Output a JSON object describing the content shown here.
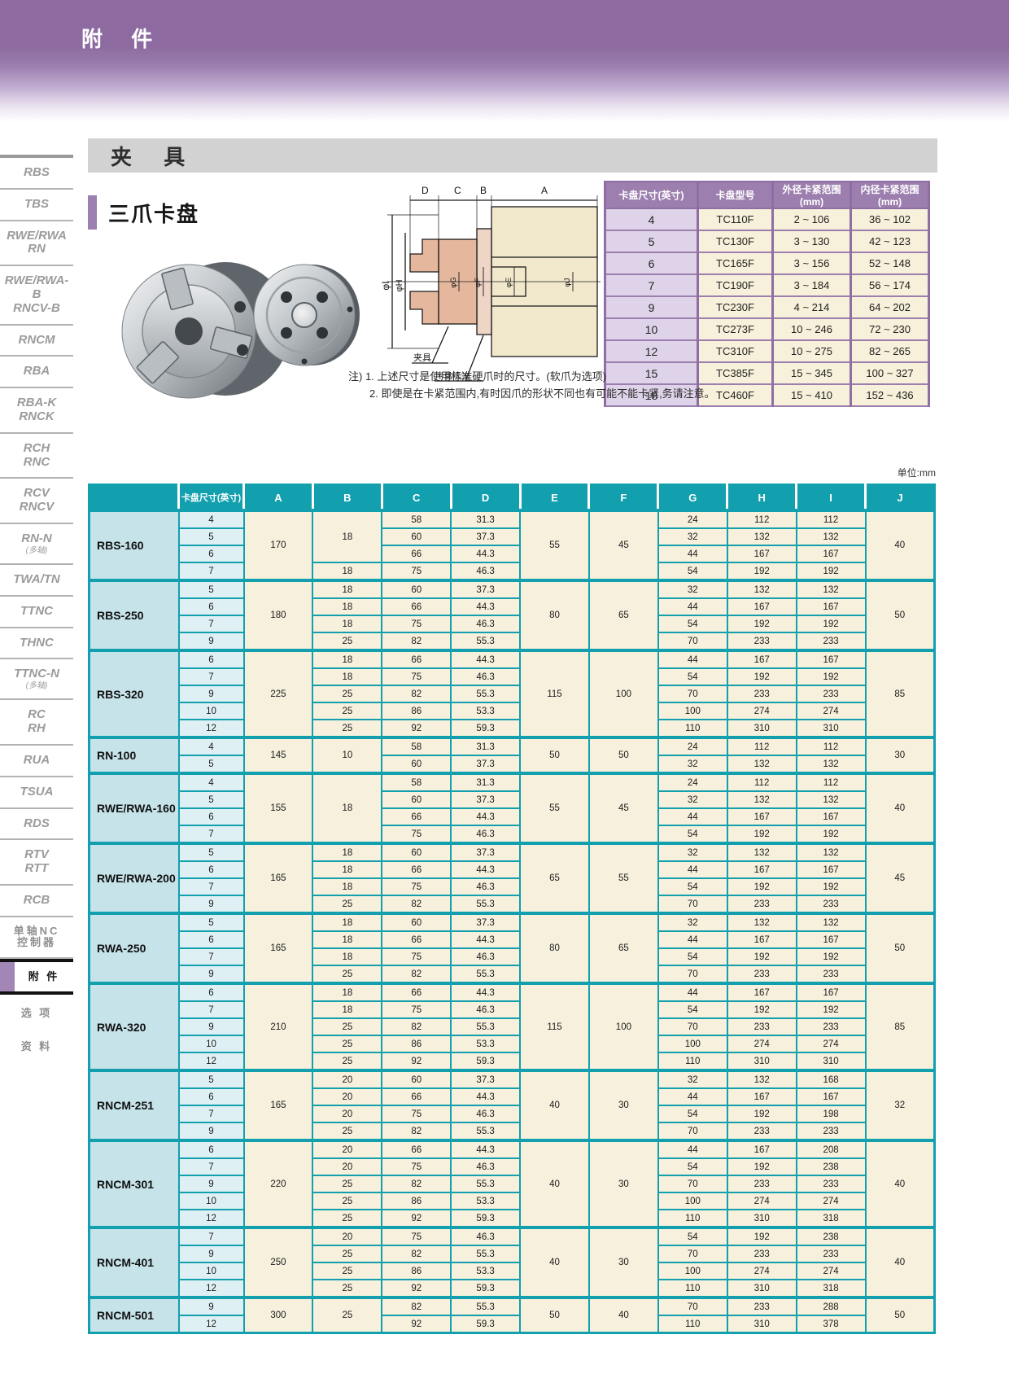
{
  "header": {
    "title": "附 件"
  },
  "section": {
    "title": "夹 具"
  },
  "subsection": {
    "title": "三爪卡盘"
  },
  "colors": {
    "band_purple": "#8d6ba1",
    "tick_purple": "#9b7fb0",
    "spec_header_purple": "#9c7fae",
    "spec_size_col": "#ded3e8",
    "cream_cell": "#f6f0dc",
    "main_teal": "#129fae",
    "model_col_cyan": "#c6e3e9",
    "size_col_cyan": "#dff0f4",
    "gray_bar": "#d2d2d2"
  },
  "sidebar": {
    "items": [
      {
        "id": "rbs",
        "lines": [
          "RBS"
        ]
      },
      {
        "id": "tbs",
        "lines": [
          "TBS"
        ]
      },
      {
        "id": "rwe-rwa-rn",
        "lines": [
          "RWE/RWA",
          "RN"
        ]
      },
      {
        "id": "rwe-rwa-b-rncv-b",
        "lines": [
          "RWE/RWA-B",
          "RNCV-B"
        ]
      },
      {
        "id": "rncm",
        "lines": [
          "RNCM"
        ]
      },
      {
        "id": "rba",
        "lines": [
          "RBA"
        ]
      },
      {
        "id": "rba-k-rnck",
        "lines": [
          "RBA-K",
          "RNCK"
        ]
      },
      {
        "id": "rch-rnc",
        "lines": [
          "RCH",
          "RNC"
        ]
      },
      {
        "id": "rcv-rncv",
        "lines": [
          "RCV",
          "RNCV"
        ]
      },
      {
        "id": "rn-n",
        "lines": [
          "RN-N"
        ],
        "note": "(多轴)"
      },
      {
        "id": "twa-tn",
        "lines": [
          "TWA/TN"
        ]
      },
      {
        "id": "ttnc",
        "lines": [
          "TTNC"
        ]
      },
      {
        "id": "thnc",
        "lines": [
          "THNC"
        ]
      },
      {
        "id": "ttnc-n",
        "lines": [
          "TTNC-N"
        ],
        "note": "(多轴)"
      },
      {
        "id": "rc-rh",
        "lines": [
          "RC",
          "RH"
        ]
      },
      {
        "id": "rua",
        "lines": [
          "RUA"
        ]
      },
      {
        "id": "tsua",
        "lines": [
          "TSUA"
        ]
      },
      {
        "id": "rds",
        "lines": [
          "RDS"
        ]
      },
      {
        "id": "rtv-rtt",
        "lines": [
          "RTV",
          "RTT"
        ]
      },
      {
        "id": "rcb",
        "lines": [
          "RCB"
        ]
      },
      {
        "id": "nc-controller",
        "lines": [
          "单轴NC",
          "控制器"
        ],
        "cjk": true
      },
      {
        "id": "accessories",
        "lines": [
          "附 件"
        ],
        "cjk": true,
        "active": true
      },
      {
        "id": "options",
        "lines": [
          "选 项"
        ],
        "cjk": true,
        "plain": true
      },
      {
        "id": "materials",
        "lines": [
          "资 料"
        ],
        "cjk": true,
        "plain": true
      }
    ]
  },
  "spec_table": {
    "headers": [
      "卡盘尺寸(英寸)",
      "卡盘型号",
      "外径卡紧范围(mm)",
      "内径卡紧范围(mm)"
    ],
    "rows": [
      [
        "4",
        "TC110F",
        "2 ~ 106",
        "36 ~ 102"
      ],
      [
        "5",
        "TC130F",
        "3 ~ 130",
        "42 ~ 123"
      ],
      [
        "6",
        "TC165F",
        "3 ~ 156",
        "52 ~ 148"
      ],
      [
        "7",
        "TC190F",
        "3 ~ 184",
        "56 ~ 174"
      ],
      [
        "9",
        "TC230F",
        "4 ~ 214",
        "64 ~ 202"
      ],
      [
        "10",
        "TC273F",
        "10 ~ 246",
        "72 ~ 230"
      ],
      [
        "12",
        "TC310F",
        "10 ~ 275",
        "82 ~ 265"
      ],
      [
        "15",
        "TC385F",
        "15 ~ 345",
        "100 ~ 327"
      ],
      [
        "18",
        "TC460F",
        "15 ~ 410",
        "152 ~ 436"
      ]
    ]
  },
  "notes": [
    "注) 1. 上述尺寸是使用标准硬爪时的尺寸。(软爪为选项)",
    "2. 即使是在卡紧范围内,有时因爪的形状不同也有可能不能卡紧,务请注意。"
  ],
  "unit_label": "单位:mm",
  "diagram": {
    "top_dims": [
      "D",
      "C",
      "B",
      "A"
    ],
    "left_dims": [
      "φI",
      "φH"
    ],
    "inner_dims": [
      "φG",
      "φF",
      "φE",
      "φJ"
    ],
    "callout_fixture": "夹具",
    "callout_flange": "卡盘法兰"
  },
  "main_table": {
    "col_headers": [
      "卡盘尺寸(英寸)",
      "A",
      "B",
      "C",
      "D",
      "E",
      "F",
      "G",
      "H",
      "I",
      "J"
    ],
    "models": [
      {
        "name": "RBS-160",
        "sizes": [
          "4",
          "5",
          "6",
          "7"
        ],
        "cols": {
          "A": [
            [
              "170",
              4
            ]
          ],
          "B": [
            [
              "18",
              3
            ],
            "18"
          ],
          "C": [
            "58",
            "60",
            "66",
            "75"
          ],
          "D": [
            "31.3",
            "37.3",
            "44.3",
            "46.3"
          ],
          "E": [
            [
              "55",
              4
            ]
          ],
          "F": [
            [
              "45",
              4
            ]
          ],
          "G": [
            "24",
            "32",
            "44",
            "54"
          ],
          "H": [
            "112",
            "132",
            "167",
            "192"
          ],
          "I": [
            "112",
            "132",
            "167",
            "192"
          ],
          "J": [
            [
              "40",
              4
            ]
          ]
        }
      },
      {
        "name": "RBS-250",
        "sizes": [
          "5",
          "6",
          "7",
          "9"
        ],
        "cols": {
          "A": [
            [
              "180",
              4
            ]
          ],
          "B": [
            "18",
            "18",
            "18",
            "25"
          ],
          "C": [
            "60",
            "66",
            "75",
            "82"
          ],
          "D": [
            "37.3",
            "44.3",
            "46.3",
            "55.3"
          ],
          "E": [
            [
              "80",
              4
            ]
          ],
          "F": [
            [
              "65",
              4
            ]
          ],
          "G": [
            "32",
            "44",
            "54",
            "70"
          ],
          "H": [
            "132",
            "167",
            "192",
            "233"
          ],
          "I": [
            "132",
            "167",
            "192",
            "233"
          ],
          "J": [
            [
              "50",
              4
            ]
          ]
        }
      },
      {
        "name": "RBS-320",
        "sizes": [
          "6",
          "7",
          "9",
          "10",
          "12"
        ],
        "cols": {
          "A": [
            [
              "225",
              5
            ]
          ],
          "B": [
            "18",
            "18",
            "25",
            "25",
            "25"
          ],
          "C": [
            "66",
            "75",
            "82",
            "86",
            "92"
          ],
          "D": [
            "44.3",
            "46.3",
            "55.3",
            "53.3",
            "59.3"
          ],
          "E": [
            [
              "115",
              5
            ]
          ],
          "F": [
            [
              "100",
              5
            ]
          ],
          "G": [
            "44",
            "54",
            "70",
            "100",
            "110"
          ],
          "H": [
            "167",
            "192",
            "233",
            "274",
            "310"
          ],
          "I": [
            "167",
            "192",
            "233",
            "274",
            "310"
          ],
          "J": [
            [
              "85",
              5
            ]
          ]
        }
      },
      {
        "name": "RN-100",
        "sizes": [
          "4",
          "5"
        ],
        "cols": {
          "A": [
            [
              "145",
              2
            ]
          ],
          "B": [
            [
              "10",
              2
            ]
          ],
          "C": [
            "58",
            "60"
          ],
          "D": [
            "31.3",
            "37.3"
          ],
          "E": [
            [
              "50",
              2
            ]
          ],
          "F": [
            [
              "50",
              2
            ]
          ],
          "G": [
            "24",
            "32"
          ],
          "H": [
            "112",
            "132"
          ],
          "I": [
            "112",
            "132"
          ],
          "J": [
            [
              "30",
              2
            ]
          ]
        }
      },
      {
        "name": "RWE/RWA-160",
        "sizes": [
          "4",
          "5",
          "6",
          "7"
        ],
        "cols": {
          "A": [
            [
              "155",
              4
            ]
          ],
          "B": [
            [
              "18",
              4
            ]
          ],
          "C": [
            "58",
            "60",
            "66",
            "75"
          ],
          "D": [
            "31.3",
            "37.3",
            "44.3",
            "46.3"
          ],
          "E": [
            [
              "55",
              4
            ]
          ],
          "F": [
            [
              "45",
              4
            ]
          ],
          "G": [
            "24",
            "32",
            "44",
            "54"
          ],
          "H": [
            "112",
            "132",
            "167",
            "192"
          ],
          "I": [
            "112",
            "132",
            "167",
            "192"
          ],
          "J": [
            [
              "40",
              4
            ]
          ]
        }
      },
      {
        "name": "RWE/RWA-200",
        "sizes": [
          "5",
          "6",
          "7",
          "9"
        ],
        "cols": {
          "A": [
            [
              "165",
              4
            ]
          ],
          "B": [
            "18",
            "18",
            "18",
            "25"
          ],
          "C": [
            "60",
            "66",
            "75",
            "82"
          ],
          "D": [
            "37.3",
            "44.3",
            "46.3",
            "55.3"
          ],
          "E": [
            [
              "65",
              4
            ]
          ],
          "F": [
            [
              "55",
              4
            ]
          ],
          "G": [
            "32",
            "44",
            "54",
            "70"
          ],
          "H": [
            "132",
            "167",
            "192",
            "233"
          ],
          "I": [
            "132",
            "167",
            "192",
            "233"
          ],
          "J": [
            [
              "45",
              4
            ]
          ]
        }
      },
      {
        "name": "RWA-250",
        "sizes": [
          "5",
          "6",
          "7",
          "9"
        ],
        "cols": {
          "A": [
            [
              "165",
              4
            ]
          ],
          "B": [
            "18",
            "18",
            "18",
            "25"
          ],
          "C": [
            "60",
            "66",
            "75",
            "82"
          ],
          "D": [
            "37.3",
            "44.3",
            "46.3",
            "55.3"
          ],
          "E": [
            [
              "80",
              4
            ]
          ],
          "F": [
            [
              "65",
              4
            ]
          ],
          "G": [
            "32",
            "44",
            "54",
            "70"
          ],
          "H": [
            "132",
            "167",
            "192",
            "233"
          ],
          "I": [
            "132",
            "167",
            "192",
            "233"
          ],
          "J": [
            [
              "50",
              4
            ]
          ]
        }
      },
      {
        "name": "RWA-320",
        "sizes": [
          "6",
          "7",
          "9",
          "10",
          "12"
        ],
        "cols": {
          "A": [
            [
              "210",
              5
            ]
          ],
          "B": [
            "18",
            "18",
            "25",
            "25",
            "25"
          ],
          "C": [
            "66",
            "75",
            "82",
            "86",
            "92"
          ],
          "D": [
            "44.3",
            "46.3",
            "55.3",
            "53.3",
            "59.3"
          ],
          "E": [
            [
              "115",
              5
            ]
          ],
          "F": [
            [
              "100",
              5
            ]
          ],
          "G": [
            "44",
            "54",
            "70",
            "100",
            "110"
          ],
          "H": [
            "167",
            "192",
            "233",
            "274",
            "310"
          ],
          "I": [
            "167",
            "192",
            "233",
            "274",
            "310"
          ],
          "J": [
            [
              "85",
              5
            ]
          ]
        }
      },
      {
        "name": "RNCM-251",
        "sizes": [
          "5",
          "6",
          "7",
          "9"
        ],
        "cols": {
          "A": [
            [
              "165",
              4
            ]
          ],
          "B": [
            "20",
            "20",
            "20",
            "25"
          ],
          "C": [
            "60",
            "66",
            "75",
            "82"
          ],
          "D": [
            "37.3",
            "44.3",
            "46.3",
            "55.3"
          ],
          "E": [
            [
              "40",
              4
            ]
          ],
          "F": [
            [
              "30",
              4
            ]
          ],
          "G": [
            "32",
            "44",
            "54",
            "70"
          ],
          "H": [
            "132",
            "167",
            "192",
            "233"
          ],
          "I": [
            "168",
            "167",
            "198",
            "233"
          ],
          "J": [
            [
              "32",
              4
            ]
          ]
        }
      },
      {
        "name": "RNCM-301",
        "sizes": [
          "6",
          "7",
          "9",
          "10",
          "12"
        ],
        "cols": {
          "A": [
            [
              "220",
              5
            ]
          ],
          "B": [
            "20",
            "20",
            "25",
            "25",
            "25"
          ],
          "C": [
            "66",
            "75",
            "82",
            "86",
            "92"
          ],
          "D": [
            "44.3",
            "46.3",
            "55.3",
            "53.3",
            "59.3"
          ],
          "E": [
            [
              "40",
              5
            ]
          ],
          "F": [
            [
              "30",
              5
            ]
          ],
          "G": [
            "44",
            "54",
            "70",
            "100",
            "110"
          ],
          "H": [
            "167",
            "192",
            "233",
            "274",
            "310"
          ],
          "I": [
            "208",
            "238",
            "233",
            "274",
            "318"
          ],
          "J": [
            [
              "40",
              5
            ]
          ]
        }
      },
      {
        "name": "RNCM-401",
        "sizes": [
          "7",
          "9",
          "10",
          "12"
        ],
        "cols": {
          "A": [
            [
              "250",
              4
            ]
          ],
          "B": [
            "20",
            "25",
            "25",
            "25"
          ],
          "C": [
            "75",
            "82",
            "86",
            "92"
          ],
          "D": [
            "46.3",
            "55.3",
            "53.3",
            "59.3"
          ],
          "E": [
            [
              "40",
              4
            ]
          ],
          "F": [
            [
              "30",
              4
            ]
          ],
          "G": [
            "54",
            "70",
            "100",
            "110"
          ],
          "H": [
            "192",
            "233",
            "274",
            "310"
          ],
          "I": [
            "238",
            "233",
            "274",
            "318"
          ],
          "J": [
            [
              "40",
              4
            ]
          ]
        }
      },
      {
        "name": "RNCM-501",
        "sizes": [
          "9",
          "12"
        ],
        "cols": {
          "A": [
            [
              "300",
              2
            ]
          ],
          "B": [
            [
              "25",
              2
            ]
          ],
          "C": [
            "82",
            "92"
          ],
          "D": [
            "55.3",
            "59.3"
          ],
          "E": [
            [
              "50",
              2
            ]
          ],
          "F": [
            [
              "40",
              2
            ]
          ],
          "G": [
            "70",
            "110"
          ],
          "H": [
            "233",
            "310"
          ],
          "I": [
            "288",
            "378"
          ],
          "J": [
            [
              "50",
              2
            ]
          ]
        }
      }
    ]
  }
}
